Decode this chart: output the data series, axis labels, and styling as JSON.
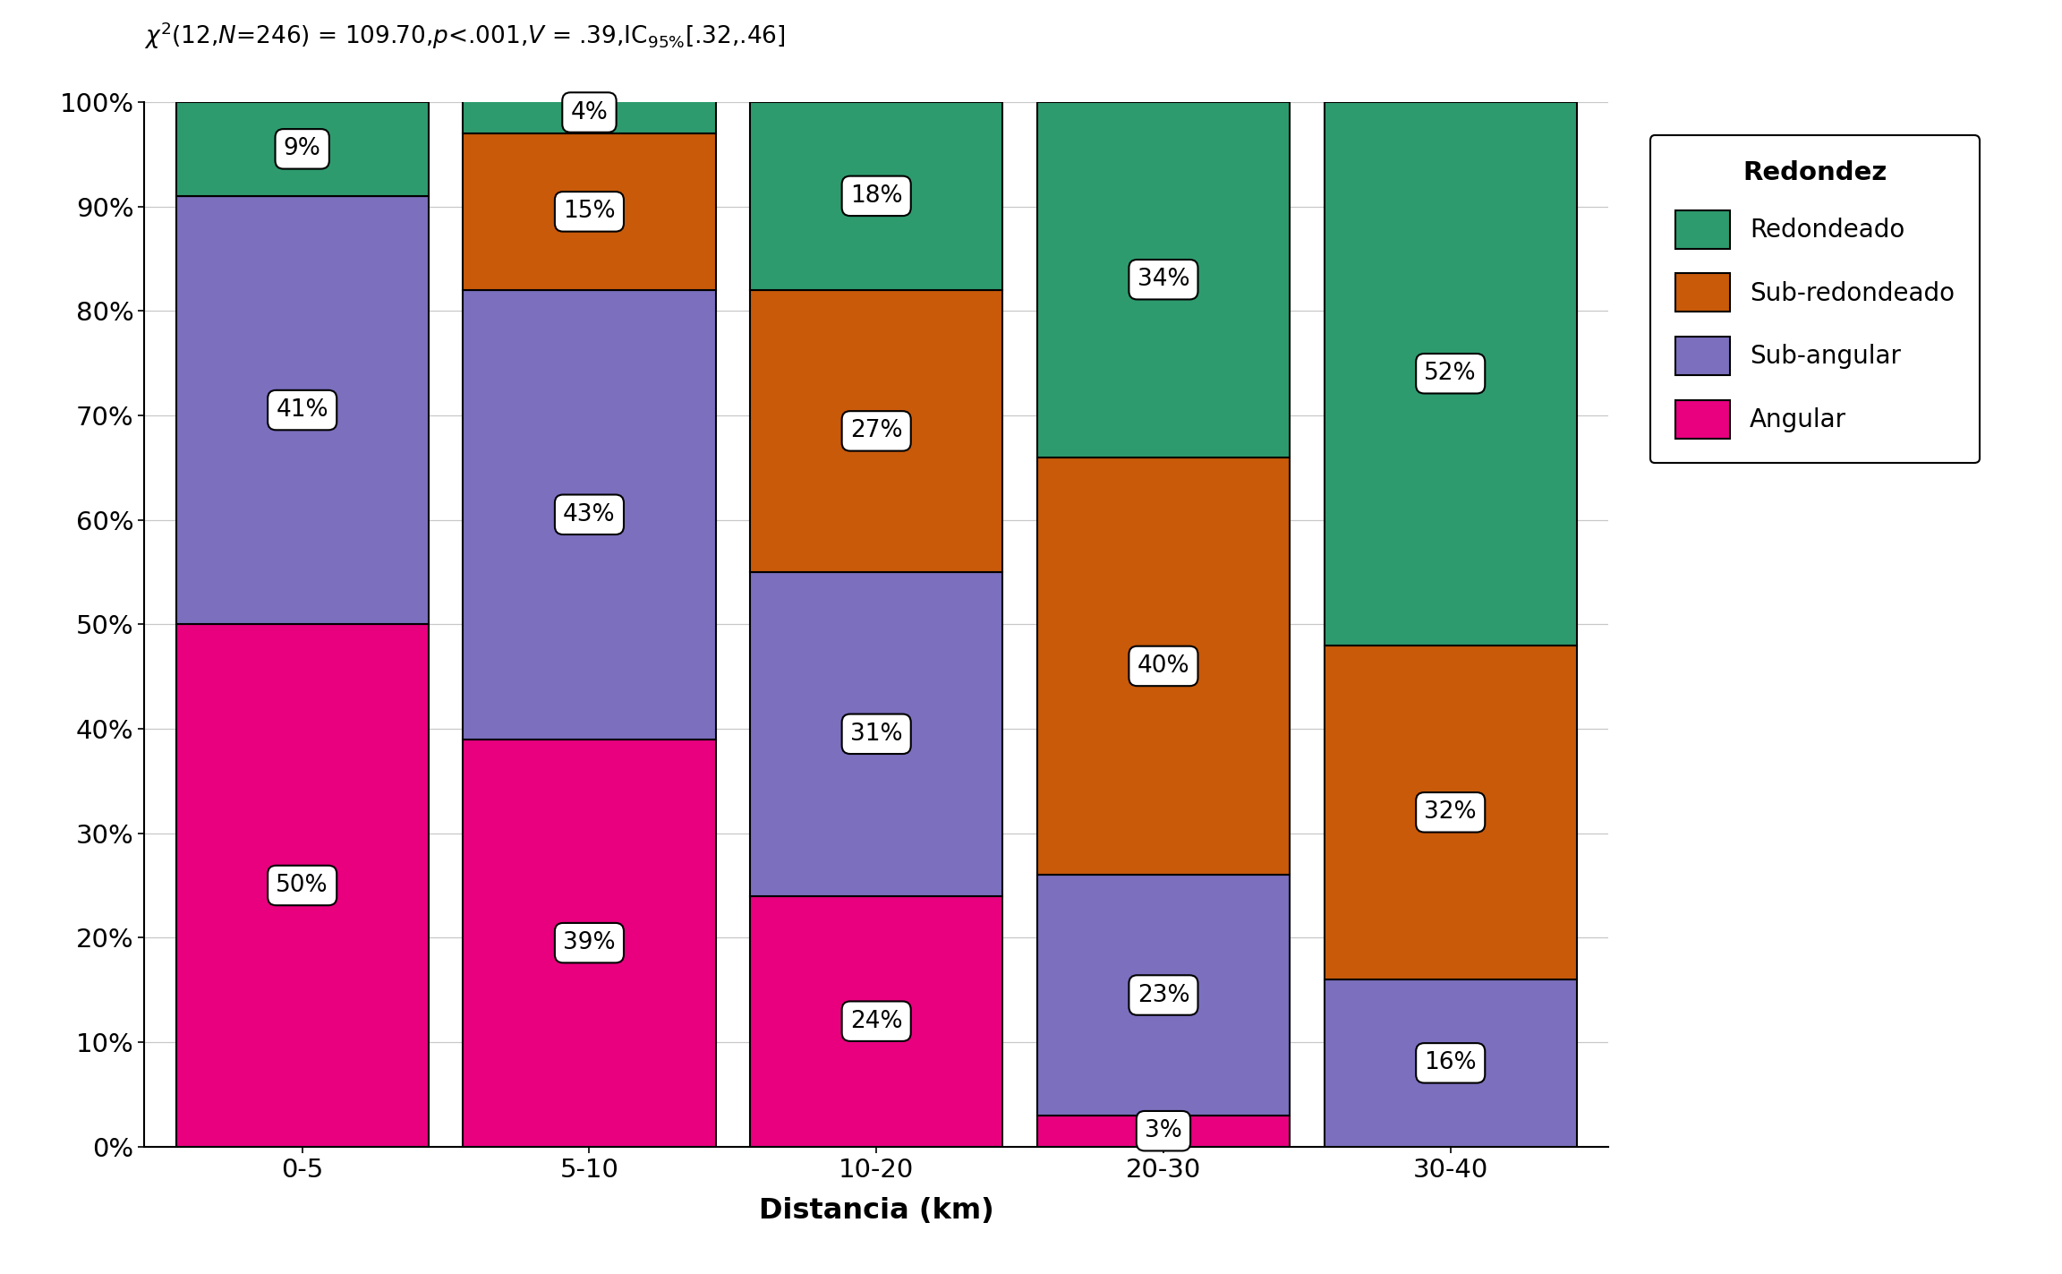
{
  "categories": [
    "0-5",
    "5-10",
    "10-20",
    "20-30",
    "30-40"
  ],
  "series": [
    {
      "name": "Angular",
      "color": "#E8007F",
      "values": [
        50,
        39,
        24,
        3,
        0
      ]
    },
    {
      "name": "Sub-angular",
      "color": "#7B6FBE",
      "values": [
        41,
        43,
        31,
        23,
        16
      ]
    },
    {
      "name": "Sub-redondeado",
      "color": "#C85A0A",
      "values": [
        0,
        15,
        27,
        40,
        32
      ]
    },
    {
      "name": "Redondeado",
      "color": "#2E9B6E",
      "values": [
        9,
        4,
        18,
        34,
        52
      ]
    }
  ],
  "xlabel": "Distancia (km)",
  "ylabel": "",
  "legend_title": "Redondez",
  "yticks": [
    0,
    10,
    20,
    30,
    40,
    50,
    60,
    70,
    80,
    90,
    100
  ],
  "bar_width": 0.88,
  "background_color": "#FFFFFF",
  "grid_color": "#C8C8C8"
}
